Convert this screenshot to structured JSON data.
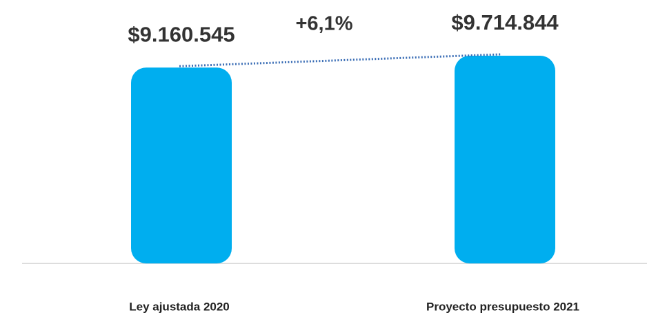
{
  "chart_data": {
    "type": "bar",
    "categories": [
      "Ley ajustada 2020",
      "Proyecto presupuesto 2021"
    ],
    "values": [
      9160545,
      9714844
    ],
    "value_labels": [
      "$9.160.545",
      "$9.714.844"
    ],
    "annotation": "+6,1%",
    "color": "#00aeef"
  }
}
